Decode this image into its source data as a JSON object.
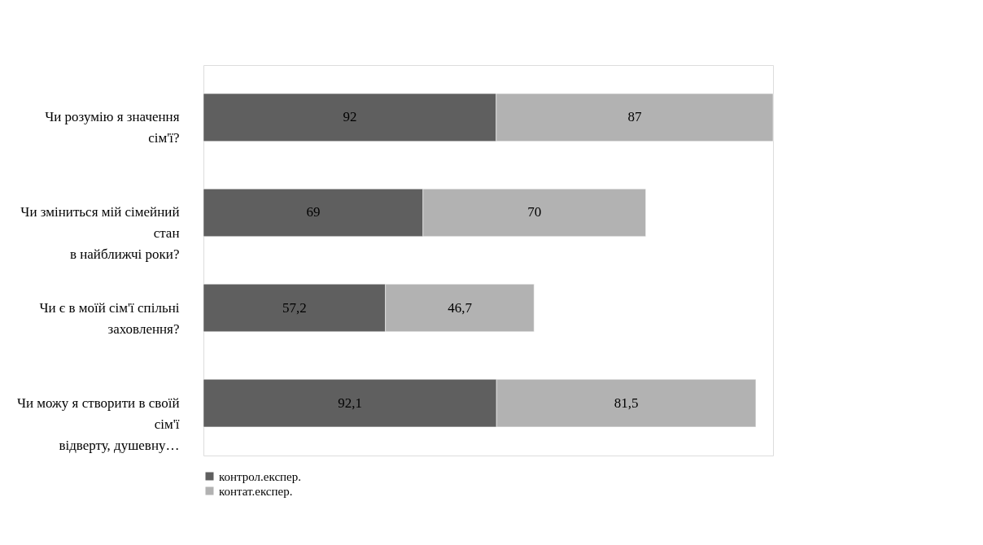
{
  "chart_data": {
    "type": "bar",
    "orientation": "horizontal",
    "stacked": true,
    "legend": "bottom",
    "grid": false,
    "categories": [
      "Чи розумію я значення сім'ї?",
      "Чи зміниться мій сімейний стан\nв найближчі роки?",
      "Чи є в моїй сім'ї спільні заховлення?",
      "Чи можу я створити в своїй сім'ї\nвідверту, душевну…"
    ],
    "series": [
      {
        "name": "контрол.експер.",
        "color": "#5f5f5f",
        "values": [
          92,
          69,
          57.2,
          92.1
        ],
        "value_labels": [
          "92",
          "69",
          "57,2",
          "92,1"
        ]
      },
      {
        "name": "контат.експер.",
        "color": "#b2b2b2",
        "values": [
          87,
          70,
          46.7,
          81.5
        ],
        "value_labels": [
          "87",
          "70",
          "46,7",
          "81,5"
        ]
      }
    ]
  }
}
